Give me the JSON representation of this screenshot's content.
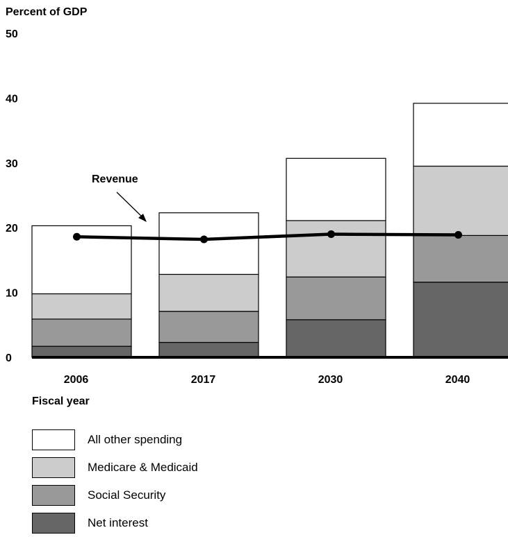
{
  "chart_data": {
    "type": "bar",
    "stacked": true,
    "ylabel": "Percent of GDP",
    "xlabel": "Fiscal year",
    "ylim": [
      0,
      50
    ],
    "yticks": [
      0,
      10,
      20,
      30,
      40,
      50
    ],
    "categories": [
      "2006",
      "2017",
      "2030",
      "2040"
    ],
    "series": [
      {
        "name": "Net interest",
        "values": [
          1.7,
          2.3,
          5.8,
          11.6
        ],
        "color": "#666666"
      },
      {
        "name": "Social Security",
        "values": [
          4.2,
          4.8,
          6.6,
          7.2
        ],
        "color": "#999999"
      },
      {
        "name": "Medicare & Medicaid",
        "values": [
          3.9,
          5.7,
          8.7,
          10.7
        ],
        "color": "#cccccc"
      },
      {
        "name": "All other spending",
        "values": [
          10.5,
          9.5,
          9.6,
          9.7
        ],
        "color": "#ffffff"
      }
    ],
    "line_series": {
      "name": "Revenue",
      "values": [
        18.6,
        18.2,
        19.0,
        18.9
      ],
      "color": "#000000"
    },
    "annotation": "Revenue",
    "legend_order": [
      "All other spending",
      "Medicare & Medicaid",
      "Social Security",
      "Net interest"
    ]
  }
}
